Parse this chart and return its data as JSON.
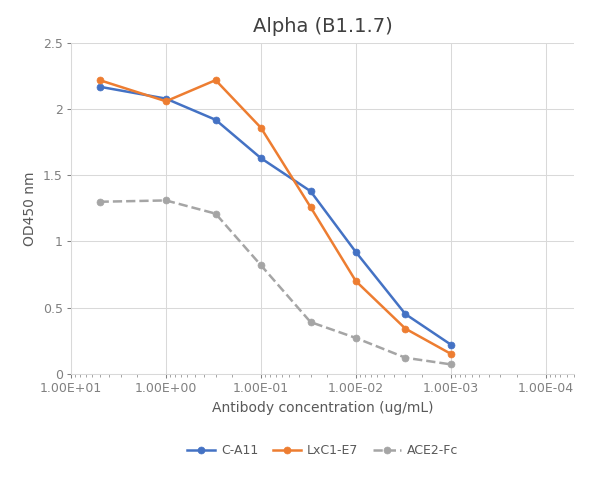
{
  "title": "Alpha (B1.1.7)",
  "xlabel": "Antibody concentration (ug/mL)",
  "ylabel": "OD450 nm",
  "ylim": [
    0,
    2.5
  ],
  "series": {
    "C-A11": {
      "x": [
        5.0,
        1.0,
        0.3,
        0.1,
        0.03,
        0.01,
        0.003,
        0.001
      ],
      "y": [
        2.17,
        2.08,
        1.92,
        1.63,
        1.38,
        0.92,
        0.45,
        0.22
      ],
      "color": "#4472C4",
      "marker": "o",
      "linestyle": "-",
      "linewidth": 1.8,
      "markersize": 5,
      "zorder": 3
    },
    "LxC1-E7": {
      "x": [
        5.0,
        1.0,
        0.3,
        0.1,
        0.03,
        0.01,
        0.003,
        0.001
      ],
      "y": [
        2.22,
        2.06,
        2.22,
        1.86,
        1.26,
        0.7,
        0.34,
        0.15
      ],
      "color": "#ED7D31",
      "marker": "o",
      "linestyle": "-",
      "linewidth": 1.8,
      "markersize": 5,
      "zorder": 3
    },
    "ACE2-Fc": {
      "x": [
        5.0,
        1.0,
        0.3,
        0.1,
        0.03,
        0.01,
        0.003,
        0.001
      ],
      "y": [
        1.3,
        1.31,
        1.21,
        0.82,
        0.39,
        0.27,
        0.12,
        0.07
      ],
      "color": "#A5A5A5",
      "marker": "o",
      "linestyle": "--",
      "linewidth": 1.8,
      "markersize": 5,
      "zorder": 2
    }
  },
  "xtick_labels": [
    "1.00E+01",
    "1.00E+00",
    "1.00E-01",
    "1.00E-02",
    "1.00E-03",
    "1.00E-04"
  ],
  "xtick_values": [
    10.0,
    1.0,
    0.1,
    0.01,
    0.001,
    0.0001
  ],
  "ytick_values": [
    0,
    0.5,
    1.0,
    1.5,
    2.0,
    2.5
  ],
  "ytick_labels": [
    "0",
    "0.5",
    "1",
    "1.5",
    "2",
    "2.5"
  ],
  "title_fontsize": 14,
  "label_fontsize": 10,
  "tick_fontsize": 9,
  "legend_fontsize": 9,
  "axis_color": "#808080",
  "tick_color": "#808080",
  "label_color": "#595959",
  "title_color": "#404040",
  "grid_color": "#D9D9D9",
  "background_color": "#FFFFFF"
}
